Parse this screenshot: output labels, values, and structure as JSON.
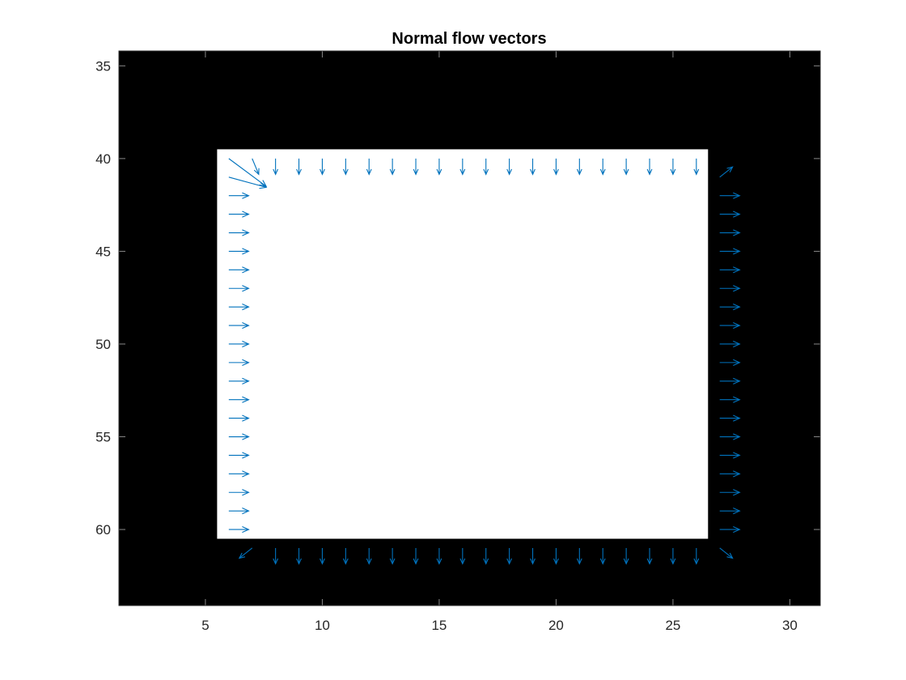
{
  "chart_data": {
    "type": "quiver",
    "title": "Normal flow vectors",
    "xlabel": "",
    "ylabel": "",
    "xlim": [
      1.3,
      31.3
    ],
    "ylim": [
      34.2,
      64.1
    ],
    "y_reversed": true,
    "x_ticks": [
      5,
      10,
      15,
      20,
      25,
      30
    ],
    "y_ticks": [
      35,
      40,
      45,
      50,
      55,
      60
    ],
    "grid": false,
    "image": {
      "description_free": true,
      "background_value": "black",
      "region_value": "white",
      "region_x": [
        5.5,
        26.5
      ],
      "region_y": [
        39.5,
        60.5
      ]
    },
    "series": [
      {
        "color": "#0072BD",
        "vectors": [
          {
            "x": 6,
            "y": 40,
            "u": 1.6,
            "v": 1.5
          },
          {
            "x": 6,
            "y": 41,
            "u": 1.6,
            "v": 0.55
          },
          {
            "x": 7,
            "y": 40,
            "u": 0.28,
            "v": 0.85
          },
          {
            "x": 8,
            "y": 40,
            "u": 0,
            "v": 0.85
          },
          {
            "x": 9,
            "y": 40,
            "u": 0,
            "v": 0.85
          },
          {
            "x": 10,
            "y": 40,
            "u": 0,
            "v": 0.85
          },
          {
            "x": 11,
            "y": 40,
            "u": 0,
            "v": 0.85
          },
          {
            "x": 12,
            "y": 40,
            "u": 0,
            "v": 0.85
          },
          {
            "x": 13,
            "y": 40,
            "u": 0,
            "v": 0.85
          },
          {
            "x": 14,
            "y": 40,
            "u": 0,
            "v": 0.85
          },
          {
            "x": 15,
            "y": 40,
            "u": 0,
            "v": 0.85
          },
          {
            "x": 16,
            "y": 40,
            "u": 0,
            "v": 0.85
          },
          {
            "x": 17,
            "y": 40,
            "u": 0,
            "v": 0.85
          },
          {
            "x": 18,
            "y": 40,
            "u": 0,
            "v": 0.85
          },
          {
            "x": 19,
            "y": 40,
            "u": 0,
            "v": 0.85
          },
          {
            "x": 20,
            "y": 40,
            "u": 0,
            "v": 0.85
          },
          {
            "x": 21,
            "y": 40,
            "u": 0,
            "v": 0.85
          },
          {
            "x": 22,
            "y": 40,
            "u": 0,
            "v": 0.85
          },
          {
            "x": 23,
            "y": 40,
            "u": 0,
            "v": 0.85
          },
          {
            "x": 24,
            "y": 40,
            "u": 0,
            "v": 0.85
          },
          {
            "x": 25,
            "y": 40,
            "u": 0,
            "v": 0.85
          },
          {
            "x": 26,
            "y": 40,
            "u": 0,
            "v": 0.85
          },
          {
            "x": 27,
            "y": 41,
            "u": 0.55,
            "v": -0.55
          },
          {
            "x": 6,
            "y": 42,
            "u": 0.85,
            "v": 0
          },
          {
            "x": 6,
            "y": 43,
            "u": 0.85,
            "v": 0
          },
          {
            "x": 6,
            "y": 44,
            "u": 0.85,
            "v": 0
          },
          {
            "x": 6,
            "y": 45,
            "u": 0.85,
            "v": 0
          },
          {
            "x": 6,
            "y": 46,
            "u": 0.85,
            "v": 0
          },
          {
            "x": 6,
            "y": 47,
            "u": 0.85,
            "v": 0
          },
          {
            "x": 6,
            "y": 48,
            "u": 0.85,
            "v": 0
          },
          {
            "x": 6,
            "y": 49,
            "u": 0.85,
            "v": 0
          },
          {
            "x": 6,
            "y": 50,
            "u": 0.85,
            "v": 0
          },
          {
            "x": 6,
            "y": 51,
            "u": 0.85,
            "v": 0
          },
          {
            "x": 6,
            "y": 52,
            "u": 0.85,
            "v": 0
          },
          {
            "x": 6,
            "y": 53,
            "u": 0.85,
            "v": 0
          },
          {
            "x": 6,
            "y": 54,
            "u": 0.85,
            "v": 0
          },
          {
            "x": 6,
            "y": 55,
            "u": 0.85,
            "v": 0
          },
          {
            "x": 6,
            "y": 56,
            "u": 0.85,
            "v": 0
          },
          {
            "x": 6,
            "y": 57,
            "u": 0.85,
            "v": 0
          },
          {
            "x": 6,
            "y": 58,
            "u": 0.85,
            "v": 0
          },
          {
            "x": 6,
            "y": 59,
            "u": 0.85,
            "v": 0
          },
          {
            "x": 6,
            "y": 60,
            "u": 0.85,
            "v": 0
          },
          {
            "x": 27,
            "y": 42,
            "u": 0.85,
            "v": 0
          },
          {
            "x": 27,
            "y": 43,
            "u": 0.85,
            "v": 0
          },
          {
            "x": 27,
            "y": 44,
            "u": 0.85,
            "v": 0
          },
          {
            "x": 27,
            "y": 45,
            "u": 0.85,
            "v": 0
          },
          {
            "x": 27,
            "y": 46,
            "u": 0.85,
            "v": 0
          },
          {
            "x": 27,
            "y": 47,
            "u": 0.85,
            "v": 0
          },
          {
            "x": 27,
            "y": 48,
            "u": 0.85,
            "v": 0
          },
          {
            "x": 27,
            "y": 49,
            "u": 0.85,
            "v": 0
          },
          {
            "x": 27,
            "y": 50,
            "u": 0.85,
            "v": 0
          },
          {
            "x": 27,
            "y": 51,
            "u": 0.85,
            "v": 0
          },
          {
            "x": 27,
            "y": 52,
            "u": 0.85,
            "v": 0
          },
          {
            "x": 27,
            "y": 53,
            "u": 0.85,
            "v": 0
          },
          {
            "x": 27,
            "y": 54,
            "u": 0.85,
            "v": 0
          },
          {
            "x": 27,
            "y": 55,
            "u": 0.85,
            "v": 0
          },
          {
            "x": 27,
            "y": 56,
            "u": 0.85,
            "v": 0
          },
          {
            "x": 27,
            "y": 57,
            "u": 0.85,
            "v": 0
          },
          {
            "x": 27,
            "y": 58,
            "u": 0.85,
            "v": 0
          },
          {
            "x": 27,
            "y": 59,
            "u": 0.85,
            "v": 0
          },
          {
            "x": 27,
            "y": 60,
            "u": 0.85,
            "v": 0
          },
          {
            "x": 7,
            "y": 61,
            "u": -0.55,
            "v": 0.55
          },
          {
            "x": 8,
            "y": 61,
            "u": 0,
            "v": 0.85
          },
          {
            "x": 9,
            "y": 61,
            "u": 0,
            "v": 0.85
          },
          {
            "x": 10,
            "y": 61,
            "u": 0,
            "v": 0.85
          },
          {
            "x": 11,
            "y": 61,
            "u": 0,
            "v": 0.85
          },
          {
            "x": 12,
            "y": 61,
            "u": 0,
            "v": 0.85
          },
          {
            "x": 13,
            "y": 61,
            "u": 0,
            "v": 0.85
          },
          {
            "x": 14,
            "y": 61,
            "u": 0,
            "v": 0.85
          },
          {
            "x": 15,
            "y": 61,
            "u": 0,
            "v": 0.85
          },
          {
            "x": 16,
            "y": 61,
            "u": 0,
            "v": 0.85
          },
          {
            "x": 17,
            "y": 61,
            "u": 0,
            "v": 0.85
          },
          {
            "x": 18,
            "y": 61,
            "u": 0,
            "v": 0.85
          },
          {
            "x": 19,
            "y": 61,
            "u": 0,
            "v": 0.85
          },
          {
            "x": 20,
            "y": 61,
            "u": 0,
            "v": 0.85
          },
          {
            "x": 21,
            "y": 61,
            "u": 0,
            "v": 0.85
          },
          {
            "x": 22,
            "y": 61,
            "u": 0,
            "v": 0.85
          },
          {
            "x": 23,
            "y": 61,
            "u": 0,
            "v": 0.85
          },
          {
            "x": 24,
            "y": 61,
            "u": 0,
            "v": 0.85
          },
          {
            "x": 25,
            "y": 61,
            "u": 0,
            "v": 0.85
          },
          {
            "x": 26,
            "y": 61,
            "u": 0,
            "v": 0.85
          },
          {
            "x": 27,
            "y": 61,
            "u": 0.55,
            "v": 0.55
          }
        ]
      }
    ]
  }
}
